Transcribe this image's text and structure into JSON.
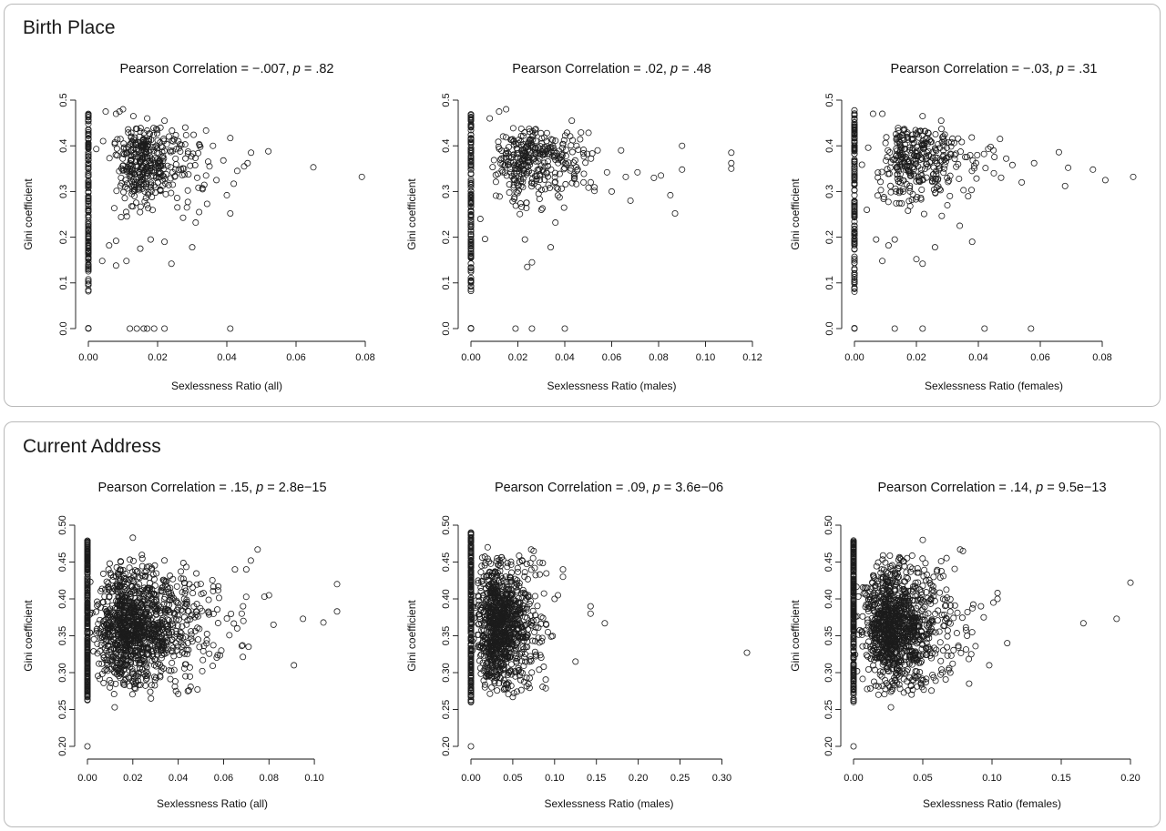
{
  "panels": {
    "top": {
      "title": "Birth Place"
    },
    "bottom": {
      "title": "Current Address"
    }
  },
  "chart_data": [
    {
      "type": "scatter",
      "panel": "Birth Place",
      "title": [
        "Pearson Correlation = −.007, ",
        "p",
        " = .82"
      ],
      "xlabel": "Sexlessness Ratio (all)",
      "ylabel": "Gini coefficient",
      "xlim": [
        0,
        0.08
      ],
      "xticks": [
        0,
        0.02,
        0.04,
        0.06,
        0.08
      ],
      "xtick_labels": [
        "0.00",
        "0.02",
        "0.04",
        "0.06",
        "0.08"
      ],
      "ylim": [
        0,
        0.5
      ],
      "yticks": [
        0,
        0.1,
        0.2,
        0.3,
        0.4,
        0.5
      ],
      "ytick_labels": [
        "0.0",
        "0.1",
        "0.2",
        "0.3",
        "0.4",
        "0.5"
      ],
      "grid": false,
      "points": [
        [
          0.065,
          0.353
        ],
        [
          0.079,
          0.332
        ],
        [
          0.052,
          0.388
        ],
        [
          0.047,
          0.385
        ],
        [
          0.045,
          0.355
        ],
        [
          0.043,
          0.345
        ],
        [
          0.041,
          0.417
        ],
        [
          0.039,
          0.368
        ],
        [
          0.037,
          0.325
        ],
        [
          0.036,
          0.4
        ],
        [
          0.034,
          0.335
        ],
        [
          0.033,
          0.305
        ],
        [
          0.032,
          0.255
        ],
        [
          0.031,
          0.232
        ],
        [
          0.03,
          0.178
        ],
        [
          0.024,
          0.142
        ],
        [
          0.022,
          0.19
        ],
        [
          0.018,
          0.195
        ],
        [
          0.015,
          0.175
        ],
        [
          0.011,
          0.148
        ],
        [
          0.008,
          0.138
        ],
        [
          0.008,
          0.192
        ],
        [
          0.006,
          0.182
        ],
        [
          0.004,
          0.148
        ],
        [
          0.04,
          0.292
        ],
        [
          0.041,
          0.252
        ],
        [
          0.042,
          0.317
        ],
        [
          0.046,
          0.362
        ],
        [
          0.035,
          0.355
        ],
        [
          0.028,
          0.44
        ],
        [
          0.026,
          0.41
        ],
        [
          0.022,
          0.455
        ],
        [
          0.017,
          0.46
        ],
        [
          0.013,
          0.465
        ],
        [
          0.01,
          0.48
        ],
        [
          0.009,
          0.475
        ],
        [
          0.008,
          0.47
        ],
        [
          0.005,
          0.475
        ],
        [
          0.012,
          0.0
        ],
        [
          0.014,
          0.0
        ],
        [
          0.016,
          0.0
        ],
        [
          0.017,
          0.0
        ],
        [
          0.019,
          0.0
        ],
        [
          0.022,
          0.0
        ],
        [
          0.041,
          0.0
        ],
        [
          0.0,
          0.0
        ],
        [
          0.0,
          0.001
        ]
      ],
      "cluster": {
        "x": [
          0.001,
          0.035
        ],
        "y": [
          0.24,
          0.44
        ],
        "count": 380,
        "center": [
          0.012,
          0.365
        ]
      },
      "axis_points": {
        "y": [
          0.08,
          0.47
        ],
        "count": 140
      }
    },
    {
      "type": "scatter",
      "panel": "Birth Place",
      "title": [
        "Pearson Correlation = .02, ",
        "p",
        " = .48"
      ],
      "xlabel": "Sexlessness Ratio (males)",
      "ylabel": "Gini coefficient",
      "xlim": [
        0,
        0.12
      ],
      "xticks": [
        0,
        0.02,
        0.04,
        0.06,
        0.08,
        0.1,
        0.12
      ],
      "xtick_labels": [
        "0.00",
        "0.02",
        "0.04",
        "0.06",
        "0.08",
        "0.10",
        "0.12"
      ],
      "ylim": [
        0,
        0.5
      ],
      "yticks": [
        0,
        0.1,
        0.2,
        0.3,
        0.4,
        0.5
      ],
      "ytick_labels": [
        "0.0",
        "0.1",
        "0.2",
        "0.3",
        "0.4",
        "0.5"
      ],
      "grid": false,
      "points": [
        [
          0.111,
          0.385
        ],
        [
          0.111,
          0.362
        ],
        [
          0.111,
          0.35
        ],
        [
          0.09,
          0.4
        ],
        [
          0.09,
          0.348
        ],
        [
          0.087,
          0.252
        ],
        [
          0.085,
          0.292
        ],
        [
          0.081,
          0.335
        ],
        [
          0.078,
          0.33
        ],
        [
          0.071,
          0.342
        ],
        [
          0.068,
          0.28
        ],
        [
          0.066,
          0.332
        ],
        [
          0.064,
          0.39
        ],
        [
          0.06,
          0.3
        ],
        [
          0.058,
          0.342
        ],
        [
          0.043,
          0.455
        ],
        [
          0.034,
          0.178
        ],
        [
          0.026,
          0.145
        ],
        [
          0.024,
          0.135
        ],
        [
          0.023,
          0.195
        ],
        [
          0.04,
          0.0
        ],
        [
          0.019,
          0.0
        ],
        [
          0.026,
          0.0
        ],
        [
          0.0,
          0.0
        ],
        [
          0.0,
          0.001
        ],
        [
          0.03,
          0.26
        ],
        [
          0.036,
          0.232
        ],
        [
          0.048,
          0.32
        ],
        [
          0.054,
          0.39
        ],
        [
          0.045,
          0.4
        ],
        [
          0.015,
          0.48
        ],
        [
          0.012,
          0.475
        ],
        [
          0.008,
          0.46
        ],
        [
          0.006,
          0.196
        ],
        [
          0.004,
          0.24
        ]
      ],
      "cluster": {
        "x": [
          0.001,
          0.058
        ],
        "y": [
          0.25,
          0.44
        ],
        "count": 330,
        "center": [
          0.018,
          0.37
        ]
      },
      "axis_points": {
        "y": [
          0.08,
          0.47
        ],
        "count": 140
      }
    },
    {
      "type": "scatter",
      "panel": "Birth Place",
      "title": [
        "Pearson Correlation = −.03, ",
        "p",
        " = .31"
      ],
      "xlabel": "Sexlessness Ratio (females)",
      "ylabel": "Gini coefficient",
      "xlim": [
        0,
        0.09
      ],
      "xticks": [
        0,
        0.02,
        0.04,
        0.06,
        0.08
      ],
      "xtick_labels": [
        "0.00",
        "0.02",
        "0.04",
        "0.06",
        "0.08"
      ],
      "ylim": [
        0,
        0.5
      ],
      "yticks": [
        0,
        0.1,
        0.2,
        0.3,
        0.4,
        0.5
      ],
      "ytick_labels": [
        "0.0",
        "0.1",
        "0.2",
        "0.3",
        "0.4",
        "0.5"
      ],
      "grid": false,
      "points": [
        [
          0.09,
          0.332
        ],
        [
          0.081,
          0.325
        ],
        [
          0.077,
          0.348
        ],
        [
          0.069,
          0.352
        ],
        [
          0.068,
          0.312
        ],
        [
          0.066,
          0.386
        ],
        [
          0.058,
          0.362
        ],
        [
          0.054,
          0.32
        ],
        [
          0.051,
          0.358
        ],
        [
          0.049,
          0.372
        ],
        [
          0.047,
          0.415
        ],
        [
          0.045,
          0.34
        ],
        [
          0.038,
          0.19
        ],
        [
          0.026,
          0.178
        ],
        [
          0.022,
          0.142
        ],
        [
          0.02,
          0.152
        ],
        [
          0.013,
          0.195
        ],
        [
          0.011,
          0.182
        ],
        [
          0.009,
          0.148
        ],
        [
          0.007,
          0.195
        ],
        [
          0.013,
          0.0
        ],
        [
          0.022,
          0.0
        ],
        [
          0.042,
          0.0
        ],
        [
          0.057,
          0.0
        ],
        [
          0.0,
          0.0
        ],
        [
          0.0,
          0.001
        ],
        [
          0.034,
          0.225
        ],
        [
          0.03,
          0.27
        ],
        [
          0.028,
          0.455
        ],
        [
          0.022,
          0.465
        ],
        [
          0.009,
          0.47
        ],
        [
          0.006,
          0.47
        ],
        [
          0.004,
          0.26
        ]
      ],
      "cluster": {
        "x": [
          0.001,
          0.048
        ],
        "y": [
          0.24,
          0.44
        ],
        "count": 330,
        "center": [
          0.014,
          0.37
        ]
      },
      "axis_points": {
        "y": [
          0.08,
          0.48
        ],
        "count": 140
      }
    },
    {
      "type": "scatter",
      "panel": "Current Address",
      "title": [
        "Pearson Correlation = .15, ",
        "p",
        " = 2.8e−15"
      ],
      "xlabel": "Sexlessness Ratio (all)",
      "ylabel": "Gini coefficient",
      "xlim": [
        0,
        0.11
      ],
      "xticks": [
        0,
        0.02,
        0.04,
        0.06,
        0.08,
        0.1
      ],
      "xtick_labels": [
        "0.00",
        "0.02",
        "0.04",
        "0.06",
        "0.08",
        "0.10"
      ],
      "ylim": [
        0.2,
        0.5
      ],
      "yticks": [
        0.2,
        0.25,
        0.3,
        0.35,
        0.4,
        0.45,
        0.5
      ],
      "ytick_labels": [
        "0.20",
        "0.25",
        "0.30",
        "0.35",
        "0.40",
        "0.45",
        "0.50"
      ],
      "grid": false,
      "points": [
        [
          0.11,
          0.42
        ],
        [
          0.11,
          0.383
        ],
        [
          0.104,
          0.368
        ],
        [
          0.095,
          0.373
        ],
        [
          0.091,
          0.31
        ],
        [
          0.082,
          0.365
        ],
        [
          0.08,
          0.405
        ],
        [
          0.078,
          0.403
        ],
        [
          0.075,
          0.467
        ],
        [
          0.072,
          0.452
        ],
        [
          0.07,
          0.44
        ],
        [
          0.068,
          0.38
        ],
        [
          0.065,
          0.44
        ],
        [
          0.03,
          0.503
        ],
        [
          0.0,
          0.51
        ],
        [
          0.0,
          0.2
        ],
        [
          0.02,
          0.483
        ],
        [
          0.028,
          0.265
        ],
        [
          0.039,
          0.275
        ],
        [
          0.012,
          0.253
        ],
        [
          0.059,
          0.33
        ],
        [
          0.066,
          0.36
        ],
        [
          0.071,
          0.335
        ]
      ],
      "cluster": {
        "x": [
          0.001,
          0.07
        ],
        "y": [
          0.27,
          0.46
        ],
        "count": 1200,
        "center": [
          0.013,
          0.362
        ]
      },
      "axis_points": {
        "y": [
          0.26,
          0.48
        ],
        "count": 260
      }
    },
    {
      "type": "scatter",
      "panel": "Current Address",
      "title": [
        "Pearson Correlation = .09, ",
        "p",
        " = 3.6e−06"
      ],
      "xlabel": "Sexlessness Ratio (males)",
      "ylabel": "Gini coefficient",
      "xlim": [
        0,
        0.33
      ],
      "xticks": [
        0,
        0.05,
        0.1,
        0.15,
        0.2,
        0.25,
        0.3
      ],
      "xtick_labels": [
        "0.00",
        "0.05",
        "0.10",
        "0.15",
        "0.20",
        "0.25",
        "0.30"
      ],
      "ylim": [
        0.2,
        0.5
      ],
      "yticks": [
        0.2,
        0.25,
        0.3,
        0.35,
        0.4,
        0.45,
        0.5
      ],
      "ytick_labels": [
        "0.20",
        "0.25",
        "0.30",
        "0.35",
        "0.40",
        "0.45",
        "0.50"
      ],
      "grid": false,
      "points": [
        [
          0.33,
          0.327
        ],
        [
          0.16,
          0.367
        ],
        [
          0.143,
          0.39
        ],
        [
          0.143,
          0.38
        ],
        [
          0.125,
          0.315
        ],
        [
          0.11,
          0.44
        ],
        [
          0.11,
          0.43
        ],
        [
          0.104,
          0.405
        ],
        [
          0.1,
          0.4
        ],
        [
          0.092,
          0.355
        ],
        [
          0.09,
          0.365
        ],
        [
          0.087,
          0.308
        ],
        [
          0.075,
          0.465
        ],
        [
          0.072,
          0.467
        ],
        [
          0.058,
          0.45
        ],
        [
          0.055,
          0.42
        ],
        [
          0.05,
          0.267
        ],
        [
          0.0,
          0.51
        ],
        [
          0.0,
          0.2
        ],
        [
          0.02,
          0.47
        ]
      ],
      "cluster": {
        "x": [
          0.001,
          0.1
        ],
        "y": [
          0.27,
          0.46
        ],
        "count": 1000,
        "center": [
          0.022,
          0.365
        ]
      },
      "axis_points": {
        "y": [
          0.26,
          0.49
        ],
        "count": 260
      }
    },
    {
      "type": "scatter",
      "panel": "Current Address",
      "title": [
        "Pearson Correlation = .14, ",
        "p",
        " = 9.5e−13"
      ],
      "xlabel": "Sexlessness Ratio (females)",
      "ylabel": "Gini coefficient",
      "xlim": [
        0,
        0.2
      ],
      "xticks": [
        0,
        0.05,
        0.1,
        0.15,
        0.2
      ],
      "xtick_labels": [
        "0.00",
        "0.05",
        "0.10",
        "0.15",
        "0.20"
      ],
      "ylim": [
        0.2,
        0.5
      ],
      "yticks": [
        0.2,
        0.25,
        0.3,
        0.35,
        0.4,
        0.45,
        0.5
      ],
      "ytick_labels": [
        "0.20",
        "0.25",
        "0.30",
        "0.35",
        "0.40",
        "0.45",
        "0.50"
      ],
      "grid": false,
      "points": [
        [
          0.2,
          0.422
        ],
        [
          0.19,
          0.373
        ],
        [
          0.166,
          0.367
        ],
        [
          0.111,
          0.34
        ],
        [
          0.104,
          0.4
        ],
        [
          0.104,
          0.408
        ],
        [
          0.101,
          0.395
        ],
        [
          0.098,
          0.31
        ],
        [
          0.094,
          0.375
        ],
        [
          0.092,
          0.39
        ],
        [
          0.085,
          0.325
        ],
        [
          0.082,
          0.35
        ],
        [
          0.079,
          0.465
        ],
        [
          0.077,
          0.467
        ],
        [
          0.071,
          0.503
        ],
        [
          0.0,
          0.51
        ],
        [
          0.0,
          0.2
        ],
        [
          0.05,
          0.48
        ],
        [
          0.027,
          0.253
        ],
        [
          0.018,
          0.27
        ]
      ],
      "cluster": {
        "x": [
          0.001,
          0.09
        ],
        "y": [
          0.27,
          0.46
        ],
        "count": 1100,
        "center": [
          0.02,
          0.362
        ]
      },
      "axis_points": {
        "y": [
          0.26,
          0.48
        ],
        "count": 260
      }
    }
  ]
}
